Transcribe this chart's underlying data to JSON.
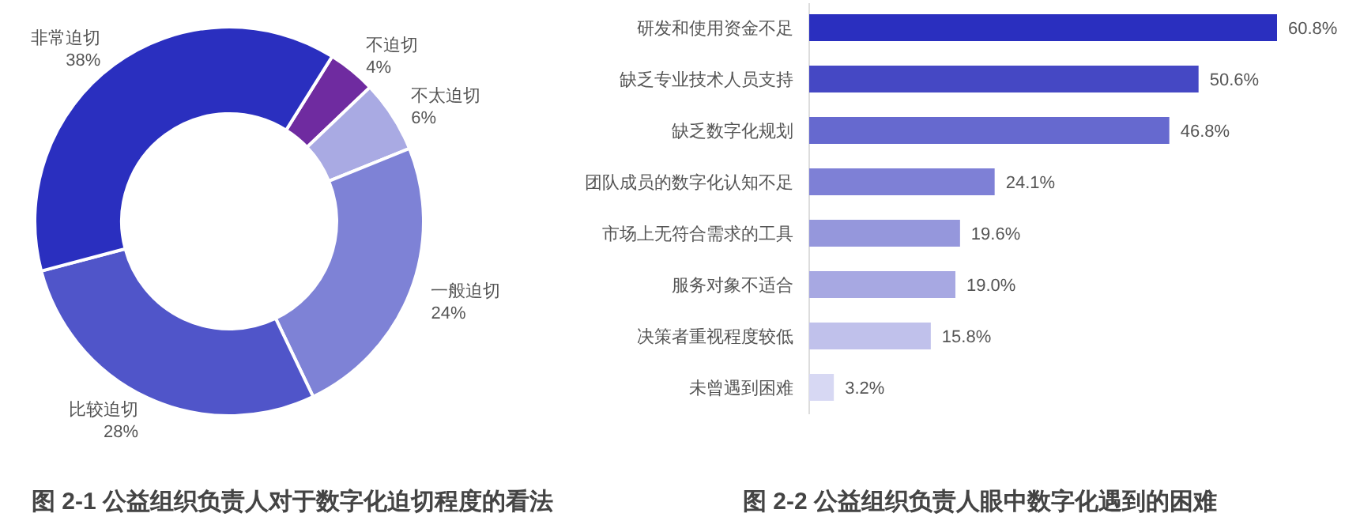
{
  "chart_data": [
    {
      "type": "donut",
      "title": "图 2-1 公益组织负责人对于数字化迫切程度的看法",
      "categories": [
        "不迫切",
        "不太迫切",
        "一般迫切",
        "比较迫切",
        "非常迫切"
      ],
      "values": [
        4,
        6,
        24,
        28,
        38
      ],
      "value_labels": [
        "4%",
        "6%",
        "24%",
        "28%",
        "38%"
      ],
      "colors": [
        "#6f2ba0",
        "#a9aae3",
        "#7e82d6",
        "#5055c9",
        "#2a2fbf"
      ]
    },
    {
      "type": "bar",
      "orientation": "horizontal",
      "title": "图 2-2 公益组织负责人眼中数字化遇到的困难",
      "categories": [
        "研发和使用资金不足",
        "缺乏专业技术人员支持",
        "缺乏数字化规划",
        "团队成员的数字化认知不足",
        "市场上无符合需求的工具",
        "服务对象不适合",
        "决策者重视程度较低",
        "未曾遇到困难"
      ],
      "values": [
        60.8,
        50.6,
        46.8,
        24.1,
        19.6,
        19.0,
        15.8,
        3.2
      ],
      "value_labels": [
        "60.8%",
        "50.6%",
        "46.8%",
        "24.1%",
        "19.6%",
        "19.0%",
        "15.8%",
        "3.2%"
      ],
      "colors": [
        "#2a2fbf",
        "#4548c4",
        "#6669cf",
        "#7e80d6",
        "#9597dc",
        "#a7a8e2",
        "#c0c1eb",
        "#d7d8f3"
      ]
    }
  ]
}
